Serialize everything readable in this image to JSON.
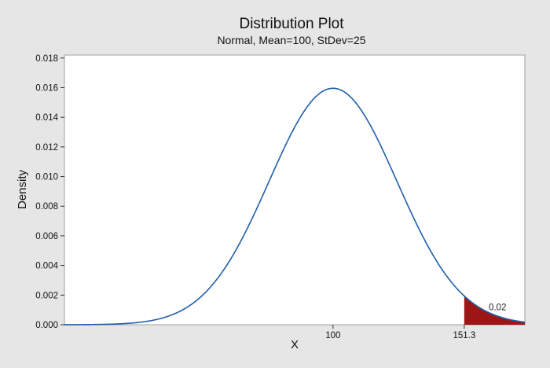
{
  "chart_data": {
    "type": "area",
    "title": "Distribution Plot",
    "subtitle": "Normal, Mean=100, StDev=25",
    "distribution": {
      "family": "normal",
      "mean": 100,
      "stdev": 25
    },
    "xlabel": "X",
    "ylabel": "Density",
    "xlim": [
      -5,
      175
    ],
    "ylim": [
      0,
      0.0182
    ],
    "y_ticks": [
      "0.000",
      "0.002",
      "0.004",
      "0.006",
      "0.008",
      "0.010",
      "0.012",
      "0.014",
      "0.016",
      "0.018"
    ],
    "x_ticks": [
      {
        "value": 100,
        "label": "100"
      },
      {
        "value": 151.3,
        "label": "151.3"
      }
    ],
    "shaded_region": {
      "from": 151.3,
      "to": 175,
      "probability_label": "0.02"
    },
    "grid": false,
    "legend": "none",
    "colors": {
      "curve": "#1f5fa8",
      "shade": "#9c1616",
      "plot_bg": "#ffffff",
      "figure_bg": "#e6e6e6"
    }
  }
}
